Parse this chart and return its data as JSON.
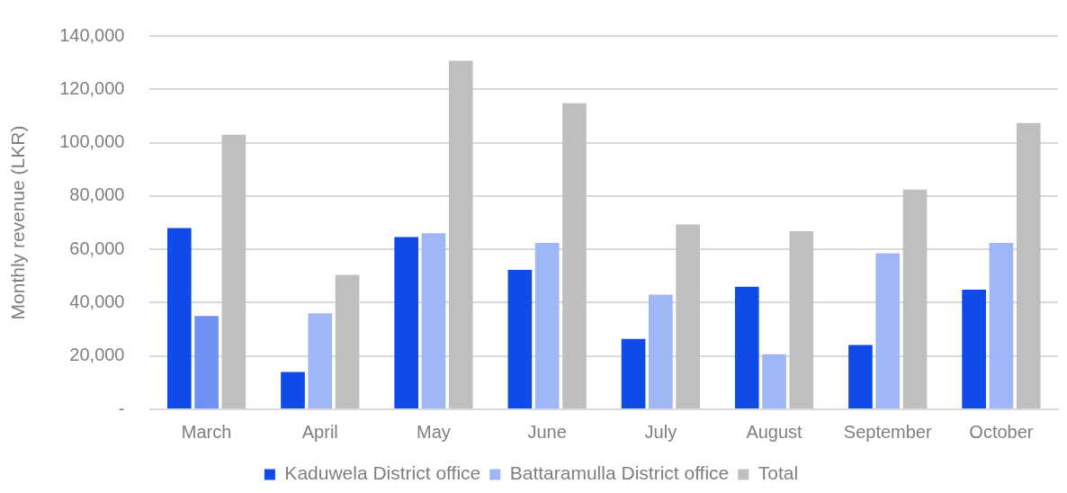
{
  "chart_data": {
    "type": "bar",
    "ylabel": "Monthly revenue (LKR)",
    "categories": [
      "March",
      "April",
      "May",
      "June",
      "July",
      "August",
      "September",
      "October"
    ],
    "series": [
      {
        "name": "Kaduwela District office",
        "color": "#0f4be8",
        "values": [
          68000,
          14000,
          64600,
          52300,
          26400,
          46000,
          24100,
          44900
        ]
      },
      {
        "name": "Battaramulla District office",
        "color": "#9fb6f7",
        "colors": [
          "#6e91f5",
          "#9fb6f7",
          "#9fb6f7",
          "#9fb6f7",
          "#9fb6f7",
          "#9fb6f7",
          "#9fb6f7",
          "#9fb6f7"
        ],
        "values": [
          35000,
          36000,
          66000,
          62400,
          43000,
          20700,
          58500,
          62400
        ]
      },
      {
        "name": "Total",
        "color": "#bfbfbf",
        "values": [
          103000,
          50400,
          130700,
          114800,
          69300,
          66800,
          82400,
          107400
        ]
      }
    ],
    "ylim": [
      0,
      140000
    ],
    "yticks": [
      {
        "value": 0,
        "label": "-"
      },
      {
        "value": 20000,
        "label": "20,000"
      },
      {
        "value": 40000,
        "label": "40,000"
      },
      {
        "value": 60000,
        "label": "60,000"
      },
      {
        "value": 80000,
        "label": "80,000"
      },
      {
        "value": 100000,
        "label": "100,000"
      },
      {
        "value": 120000,
        "label": "120,000"
      },
      {
        "value": 140000,
        "label": "140,000"
      }
    ],
    "grid": "y",
    "legend": "bottom"
  }
}
